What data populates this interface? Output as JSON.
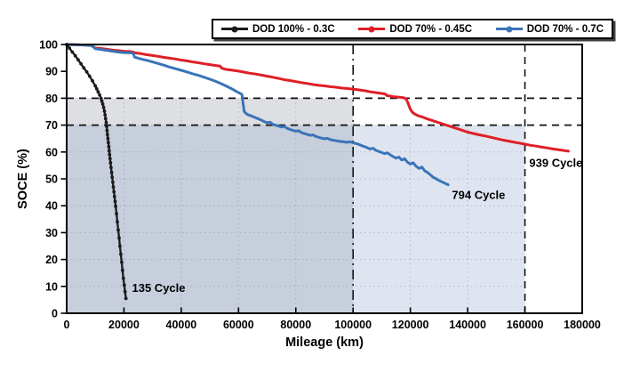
{
  "figure": {
    "background": "#ffffff"
  },
  "legend": {
    "position": "top-center-boxed",
    "items": [
      {
        "label": "DOD 100% - 0.3C",
        "color": "#1b1b1b"
      },
      {
        "label": "DOD 70% - 0.45C",
        "color": "#df1f26"
      },
      {
        "label": "DOD 70% - 0.7C",
        "color": "#3a74b8"
      }
    ]
  },
  "chart_data": {
    "type": "line",
    "title": "",
    "xlabel": "Mileage (km)",
    "ylabel": "SOCE (%)",
    "xlim": [
      0,
      180000
    ],
    "ylim": [
      0,
      100
    ],
    "xticks": [
      0,
      20000,
      40000,
      60000,
      80000,
      100000,
      120000,
      140000,
      160000,
      180000
    ],
    "yticks": [
      0,
      10,
      20,
      30,
      40,
      50,
      60,
      70,
      80,
      90,
      100
    ],
    "grid": "dotted gridlines visible over shaded regions",
    "legend_position": "top center, boxed with shadow",
    "reference_lines": [
      {
        "orientation": "horizontal",
        "value": 80,
        "style": "dashed",
        "color": "#111111"
      },
      {
        "orientation": "horizontal",
        "value": 70,
        "style": "dashed",
        "color": "#111111"
      },
      {
        "orientation": "vertical",
        "value": 100000,
        "style": "dash-dot",
        "color": "#111111"
      },
      {
        "orientation": "vertical",
        "value": 160000,
        "style": "dashed",
        "color": "#111111"
      }
    ],
    "shaded_regions": [
      {
        "x": [
          0,
          100000
        ],
        "y": [
          0,
          80
        ],
        "color": "rgba(125,132,142,0.26)"
      },
      {
        "x": [
          0,
          160000
        ],
        "y": [
          0,
          70
        ],
        "color": "rgba(150,170,205,0.30)"
      }
    ],
    "annotations": [
      {
        "text": "135 Cycle",
        "x": 22800,
        "y": 8,
        "color": "#1b1b1b"
      },
      {
        "text": "794 Cycle",
        "x": 134500,
        "y": 42.5,
        "color": "#3a74b8"
      },
      {
        "text": "939 Cycle",
        "x": 161500,
        "y": 54.5,
        "color": "#df1f26"
      }
    ],
    "series": [
      {
        "name": "DOD 100% - 0.3C",
        "color": "#1b1b1b",
        "markers": true,
        "cycles": 135,
        "points": [
          [
            0,
            100
          ],
          [
            1000,
            98.6
          ],
          [
            2000,
            97.2
          ],
          [
            3000,
            95.8
          ],
          [
            4000,
            94.3
          ],
          [
            5000,
            92.8
          ],
          [
            6000,
            91.3
          ],
          [
            7000,
            89.8
          ],
          [
            8000,
            88.2
          ],
          [
            9000,
            86.5
          ],
          [
            10000,
            84.6
          ],
          [
            10500,
            83.5
          ],
          [
            11000,
            82.4
          ],
          [
            11500,
            81.2
          ],
          [
            12000,
            79.9
          ],
          [
            12300,
            78.9
          ],
          [
            12600,
            77.8
          ],
          [
            12900,
            76.6
          ],
          [
            13200,
            75.2
          ],
          [
            13400,
            73.8
          ],
          [
            13600,
            72.4
          ],
          [
            13800,
            71.0
          ],
          [
            13950,
            69.5
          ],
          [
            14100,
            68.0
          ],
          [
            14250,
            66.5
          ],
          [
            14400,
            65.0
          ],
          [
            14550,
            63.5
          ],
          [
            14700,
            62.0
          ],
          [
            14850,
            60.5
          ],
          [
            15000,
            59.0
          ],
          [
            15150,
            57.5
          ],
          [
            15300,
            56.0
          ],
          [
            15500,
            54.2
          ],
          [
            15700,
            52.4
          ],
          [
            15900,
            50.6
          ],
          [
            16100,
            48.8
          ],
          [
            16300,
            47.0
          ],
          [
            16500,
            45.2
          ],
          [
            16700,
            43.4
          ],
          [
            16900,
            41.6
          ],
          [
            17100,
            39.8
          ],
          [
            17400,
            37.0
          ],
          [
            17700,
            34.0
          ],
          [
            18000,
            31.0
          ],
          [
            18300,
            28.0
          ],
          [
            18600,
            25.0
          ],
          [
            18900,
            22.0
          ],
          [
            19200,
            19.0
          ],
          [
            19500,
            16.0
          ],
          [
            19800,
            13.0
          ],
          [
            20100,
            10.5
          ],
          [
            20400,
            8.0
          ],
          [
            20700,
            5.5
          ]
        ]
      },
      {
        "name": "DOD 70% - 0.45C",
        "color": "#df1f26",
        "markers": false,
        "cycles": 939,
        "points": [
          [
            0,
            100
          ],
          [
            3000,
            99.9
          ],
          [
            6000,
            99.8
          ],
          [
            8500,
            99.7
          ],
          [
            9200,
            99.3
          ],
          [
            9800,
            98.8
          ],
          [
            10000,
            98.7
          ],
          [
            12000,
            98.5
          ],
          [
            14000,
            98.2
          ],
          [
            16000,
            97.9
          ],
          [
            18000,
            97.7
          ],
          [
            20000,
            97.5
          ],
          [
            22000,
            97.4
          ],
          [
            23200,
            97.2
          ],
          [
            23800,
            96.9
          ],
          [
            26000,
            96.6
          ],
          [
            28000,
            96.2
          ],
          [
            30000,
            95.9
          ],
          [
            32000,
            95.6
          ],
          [
            34000,
            95.2
          ],
          [
            36000,
            94.9
          ],
          [
            38000,
            94.6
          ],
          [
            40000,
            94.2
          ],
          [
            42000,
            93.9
          ],
          [
            44000,
            93.5
          ],
          [
            46000,
            93.2
          ],
          [
            48000,
            92.8
          ],
          [
            50000,
            92.5
          ],
          [
            52000,
            92.2
          ],
          [
            53500,
            92.0
          ],
          [
            54200,
            91.2
          ],
          [
            55000,
            90.9
          ],
          [
            56000,
            90.7
          ],
          [
            58000,
            90.4
          ],
          [
            60000,
            90.1
          ],
          [
            62000,
            89.7
          ],
          [
            64000,
            89.3
          ],
          [
            66000,
            89.0
          ],
          [
            68000,
            88.6
          ],
          [
            70000,
            88.2
          ],
          [
            72000,
            87.8
          ],
          [
            74000,
            87.4
          ],
          [
            76000,
            86.9
          ],
          [
            78000,
            86.6
          ],
          [
            80000,
            86.2
          ],
          [
            82000,
            85.8
          ],
          [
            84000,
            85.5
          ],
          [
            86000,
            85.1
          ],
          [
            88000,
            84.8
          ],
          [
            90000,
            84.6
          ],
          [
            92000,
            84.3
          ],
          [
            94000,
            84.1
          ],
          [
            96000,
            83.8
          ],
          [
            98000,
            83.6
          ],
          [
            100000,
            83.4
          ],
          [
            102000,
            83.1
          ],
          [
            104000,
            82.8
          ],
          [
            106000,
            82.4
          ],
          [
            108000,
            82.1
          ],
          [
            110000,
            81.8
          ],
          [
            111200,
            81.6
          ],
          [
            111800,
            81.0
          ],
          [
            113000,
            80.8
          ],
          [
            114000,
            80.6
          ],
          [
            115000,
            80.5
          ],
          [
            116000,
            80.4
          ],
          [
            117000,
            80.3
          ],
          [
            118000,
            80.1
          ],
          [
            118600,
            79.5
          ],
          [
            119100,
            78.4
          ],
          [
            119600,
            77.0
          ],
          [
            120100,
            75.7
          ],
          [
            120700,
            74.8
          ],
          [
            121400,
            74.2
          ],
          [
            122300,
            73.7
          ],
          [
            123200,
            73.3
          ],
          [
            124200,
            73.0
          ],
          [
            126000,
            72.3
          ],
          [
            128000,
            71.6
          ],
          [
            130000,
            70.9
          ],
          [
            132000,
            70.2
          ],
          [
            134000,
            69.5
          ],
          [
            136000,
            68.8
          ],
          [
            138000,
            68.1
          ],
          [
            140000,
            67.4
          ],
          [
            142000,
            66.9
          ],
          [
            144000,
            66.4
          ],
          [
            146000,
            66.0
          ],
          [
            148000,
            65.5
          ],
          [
            150000,
            65.0
          ],
          [
            152000,
            64.5
          ],
          [
            154000,
            64.1
          ],
          [
            156000,
            63.7
          ],
          [
            158000,
            63.3
          ],
          [
            160000,
            62.9
          ],
          [
            162000,
            62.5
          ],
          [
            164000,
            62.2
          ],
          [
            166000,
            61.8
          ],
          [
            168000,
            61.5
          ],
          [
            170000,
            61.1
          ],
          [
            172000,
            60.8
          ],
          [
            174000,
            60.5
          ],
          [
            175200,
            60.3
          ]
        ]
      },
      {
        "name": "DOD 70% - 0.7C",
        "color": "#3a74b8",
        "markers": false,
        "cycles": 794,
        "points": [
          [
            0,
            100
          ],
          [
            3000,
            99.9
          ],
          [
            6000,
            99.8
          ],
          [
            8500,
            99.6
          ],
          [
            9300,
            99.1
          ],
          [
            10000,
            98.4
          ],
          [
            12000,
            98.1
          ],
          [
            14000,
            97.8
          ],
          [
            16000,
            97.5
          ],
          [
            18000,
            97.2
          ],
          [
            20000,
            97.0
          ],
          [
            22000,
            96.9
          ],
          [
            23200,
            96.8
          ],
          [
            23700,
            95.3
          ],
          [
            26000,
            94.6
          ],
          [
            28000,
            94.1
          ],
          [
            30000,
            93.5
          ],
          [
            32000,
            92.9
          ],
          [
            34000,
            92.3
          ],
          [
            36000,
            91.6
          ],
          [
            38000,
            91.0
          ],
          [
            40000,
            90.4
          ],
          [
            42000,
            89.8
          ],
          [
            44000,
            89.1
          ],
          [
            46000,
            88.5
          ],
          [
            48000,
            87.8
          ],
          [
            50000,
            87.1
          ],
          [
            52000,
            86.3
          ],
          [
            54000,
            85.4
          ],
          [
            56000,
            84.4
          ],
          [
            58000,
            83.3
          ],
          [
            59500,
            82.4
          ],
          [
            60600,
            81.8
          ],
          [
            61200,
            81.4
          ],
          [
            61600,
            78.0
          ],
          [
            62000,
            75.0
          ],
          [
            63000,
            74.0
          ],
          [
            64500,
            73.4
          ],
          [
            66000,
            72.7
          ],
          [
            67500,
            72.1
          ],
          [
            69000,
            71.3
          ],
          [
            70000,
            70.9
          ],
          [
            71000,
            71.1
          ],
          [
            72000,
            70.3
          ],
          [
            73500,
            69.8
          ],
          [
            75000,
            69.3
          ],
          [
            76000,
            69.5
          ],
          [
            77000,
            68.8
          ],
          [
            78500,
            68.2
          ],
          [
            80000,
            67.7
          ],
          [
            81000,
            67.9
          ],
          [
            82000,
            67.2
          ],
          [
            83500,
            66.7
          ],
          [
            85000,
            66.2
          ],
          [
            86000,
            66.4
          ],
          [
            87000,
            65.8
          ],
          [
            88500,
            65.3
          ],
          [
            90000,
            64.9
          ],
          [
            91000,
            65.1
          ],
          [
            92000,
            64.6
          ],
          [
            93500,
            64.3
          ],
          [
            95000,
            64.0
          ],
          [
            96500,
            63.8
          ],
          [
            98000,
            63.6
          ],
          [
            99000,
            63.8
          ],
          [
            100000,
            63.4
          ],
          [
            101500,
            63.0
          ],
          [
            103000,
            62.4
          ],
          [
            104500,
            61.8
          ],
          [
            106000,
            61.1
          ],
          [
            107000,
            61.4
          ],
          [
            108000,
            60.6
          ],
          [
            109500,
            60.0
          ],
          [
            111000,
            59.4
          ],
          [
            112000,
            59.7
          ],
          [
            113000,
            58.9
          ],
          [
            114000,
            58.3
          ],
          [
            115000,
            57.7
          ],
          [
            116000,
            58.1
          ],
          [
            117000,
            57.0
          ],
          [
            118000,
            57.5
          ],
          [
            119000,
            56.2
          ],
          [
            120000,
            55.5
          ],
          [
            121000,
            56.0
          ],
          [
            122000,
            54.7
          ],
          [
            123000,
            53.9
          ],
          [
            124000,
            54.4
          ],
          [
            125000,
            53.0
          ],
          [
            126000,
            52.4
          ],
          [
            127000,
            51.5
          ],
          [
            128000,
            50.6
          ],
          [
            129000,
            50.0
          ],
          [
            130000,
            49.4
          ],
          [
            131000,
            48.9
          ],
          [
            132000,
            48.4
          ],
          [
            133200,
            47.8
          ]
        ]
      }
    ]
  }
}
